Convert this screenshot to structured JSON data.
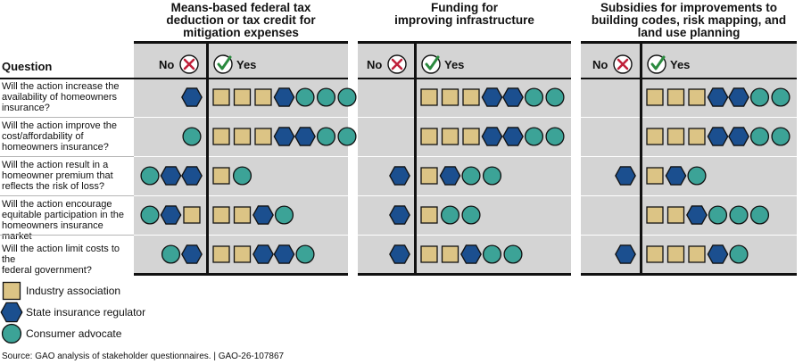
{
  "question_header": "Question",
  "no_label": "No",
  "yes_label": "Yes",
  "colors": {
    "industry": "#dcc485",
    "regulator": "#1b4f8f",
    "consumer": "#3ca397",
    "panel_bg": "#d4d4d4",
    "no_x": "#c0203a",
    "yes_check": "#2a8a3e"
  },
  "legend": [
    {
      "key": "industry",
      "label": "Industry association",
      "icon": "square-icon"
    },
    {
      "key": "regulator",
      "label": "State insurance regulator",
      "icon": "hexagon-icon"
    },
    {
      "key": "consumer",
      "label": "Consumer advocate",
      "icon": "circle-icon"
    }
  ],
  "source": "Source: GAO analysis of stakeholder questionnaires.  |  GAO-26-107867",
  "chart_data": {
    "type": "table",
    "questions": [
      [
        "Will the action increase the",
        "availability of homeowners",
        "insurance?"
      ],
      [
        "Will the action improve the",
        "cost/affordability of",
        "homeowners insurance?"
      ],
      [
        "Will the action result in a",
        "homeowner premium that",
        "reflects the risk of loss?"
      ],
      [
        "Will the action encourage",
        "equitable participation in the",
        "homeowners insurance market"
      ],
      [
        "Will the action limit costs to the",
        "federal government?"
      ]
    ],
    "panels": [
      {
        "title": [
          "Means-based federal tax",
          "deduction or tax credit for",
          "mitigation expenses"
        ],
        "rows": [
          {
            "no": [
              "regulator"
            ],
            "yes": [
              "industry",
              "industry",
              "industry",
              "regulator",
              "consumer",
              "consumer",
              "consumer"
            ]
          },
          {
            "no": [
              "consumer"
            ],
            "yes": [
              "industry",
              "industry",
              "industry",
              "regulator",
              "regulator",
              "consumer",
              "consumer"
            ]
          },
          {
            "no": [
              "consumer",
              "regulator",
              "regulator"
            ],
            "yes": [
              "industry",
              "consumer"
            ]
          },
          {
            "no": [
              "consumer",
              "regulator",
              "industry"
            ],
            "yes": [
              "industry",
              "industry",
              "regulator",
              "consumer"
            ]
          },
          {
            "no": [
              "consumer",
              "regulator"
            ],
            "yes": [
              "industry",
              "industry",
              "regulator",
              "regulator",
              "consumer"
            ]
          }
        ]
      },
      {
        "title": [
          "Funding for",
          "improving infrastructure"
        ],
        "rows": [
          {
            "no": [],
            "yes": [
              "industry",
              "industry",
              "industry",
              "regulator",
              "regulator",
              "consumer",
              "consumer"
            ]
          },
          {
            "no": [],
            "yes": [
              "industry",
              "industry",
              "industry",
              "regulator",
              "regulator",
              "consumer",
              "consumer"
            ]
          },
          {
            "no": [
              "regulator"
            ],
            "yes": [
              "industry",
              "regulator",
              "consumer",
              "consumer"
            ]
          },
          {
            "no": [
              "regulator"
            ],
            "yes": [
              "industry",
              "consumer",
              "consumer"
            ]
          },
          {
            "no": [
              "regulator"
            ],
            "yes": [
              "industry",
              "industry",
              "regulator",
              "consumer",
              "consumer"
            ]
          }
        ]
      },
      {
        "title": [
          "Subsidies for improvements to",
          "building codes, risk mapping, and",
          "land use planning"
        ],
        "rows": [
          {
            "no": [],
            "yes": [
              "industry",
              "industry",
              "industry",
              "regulator",
              "regulator",
              "consumer",
              "consumer"
            ]
          },
          {
            "no": [],
            "yes": [
              "industry",
              "industry",
              "industry",
              "regulator",
              "regulator",
              "consumer",
              "consumer"
            ]
          },
          {
            "no": [
              "regulator"
            ],
            "yes": [
              "industry",
              "regulator",
              "consumer"
            ]
          },
          {
            "no": [],
            "yes": [
              "industry",
              "industry",
              "regulator",
              "consumer",
              "consumer",
              "consumer"
            ]
          },
          {
            "no": [
              "regulator"
            ],
            "yes": [
              "industry",
              "industry",
              "industry",
              "regulator",
              "consumer"
            ]
          }
        ]
      }
    ]
  }
}
